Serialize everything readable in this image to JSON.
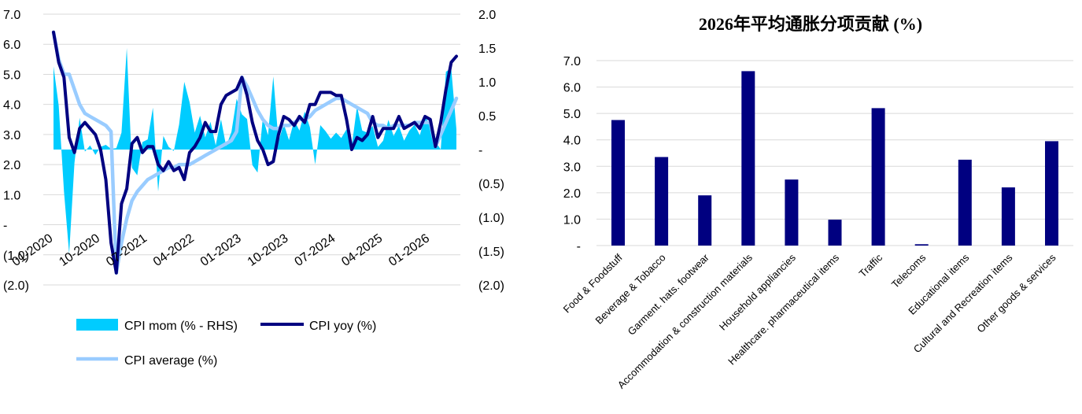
{
  "colors": {
    "mom": "#00CCFF",
    "yoy": "#000080",
    "avg": "#99CCFF",
    "bar": "#000080",
    "grid": "#D9D9D9"
  },
  "chart_data": [
    {
      "type": "line",
      "title": "",
      "left_axis": {
        "ticks": [
          "(2.0)",
          "(1.0)",
          "-",
          "1.0",
          "2.0",
          "3.0",
          "4.0",
          "5.0",
          "6.0",
          "7.0"
        ],
        "ylim": [
          -2,
          7
        ]
      },
      "right_axis": {
        "ticks": [
          "(2.0)",
          "(1.5)",
          "(1.0)",
          "(0.5)",
          "-",
          "0.5",
          "1.0",
          "1.5",
          "2.0"
        ],
        "ylim": [
          -2,
          2
        ]
      },
      "x_labels": [
        "01-2020",
        "10-2020",
        "07-2021",
        "04-2022",
        "01-2023",
        "10-2023",
        "07-2024",
        "04-2025",
        "01-2026"
      ],
      "x_label_months": [
        0,
        9,
        18,
        27,
        36,
        45,
        54,
        63,
        72
      ],
      "grid": true,
      "legend_position": "bottom",
      "series": [
        {
          "name": "CPI mom (% - RHS)",
          "type": "area",
          "axis": "right",
          "values": [
            1.23,
            0.65,
            -0.62,
            -1.54,
            -0.2,
            0.47,
            -0.03,
            0.06,
            -0.08,
            0.04,
            0.07,
            0.01,
            0.02,
            0.25,
            1.5,
            -0.27,
            -0.38,
            0.11,
            0.15,
            0.62,
            -0.62,
            0.2,
            0.04,
            -0.02,
            0.37,
            1.0,
            0.7,
            0.25,
            0.5,
            0.18,
            0.41,
            0.06,
            0.45,
            0.05,
            0.26,
            0.75,
            0.52,
            0.45,
            -0.23,
            -0.34,
            0.47,
            0.21,
            1.08,
            0.12,
            0.38,
            0.14,
            0.43,
            0.28,
            0.56,
            0.33,
            -0.22,
            0.36,
            0.27,
            0.16,
            0.25,
            0.17,
            0.3,
            0.05,
            0.64,
            0.28,
            0.25,
            0.35,
            0.04,
            0.13,
            0.44,
            0.2,
            0.35,
            0.13,
            0.28,
            0.37,
            0.21,
            0.49,
            0.35,
            0.12,
            0.0,
            1.15,
            1.2,
            0.3
          ]
        },
        {
          "name": "CPI yoy (%)",
          "type": "line",
          "axis": "left",
          "values": [
            6.4,
            5.4,
            4.9,
            2.9,
            2.4,
            3.2,
            3.4,
            3.2,
            3.0,
            2.5,
            1.5,
            -0.6,
            -1.6,
            0.7,
            1.2,
            2.7,
            2.9,
            2.4,
            2.6,
            2.6,
            2.0,
            1.8,
            2.1,
            1.8,
            1.9,
            1.5,
            2.4,
            2.6,
            2.9,
            3.4,
            3.1,
            3.1,
            4.0,
            4.3,
            4.4,
            4.5,
            4.9,
            4.3,
            3.4,
            2.8,
            2.5,
            2.0,
            2.1,
            3.0,
            3.6,
            3.5,
            3.3,
            3.6,
            3.4,
            4.0,
            4.0,
            4.4,
            4.4,
            4.4,
            4.3,
            4.3,
            3.5,
            2.5,
            2.9,
            2.8,
            3.0,
            3.6,
            2.9,
            3.2,
            3.2,
            3.2,
            3.6,
            3.2,
            3.3,
            3.4,
            3.2,
            3.6,
            3.5,
            2.6,
            3.4,
            4.5,
            5.4,
            5.6
          ]
        },
        {
          "name": "CPI average (%)",
          "type": "line",
          "axis": "left",
          "values": [
            6.4,
            5.5,
            5.0,
            5.0,
            4.5,
            4.0,
            3.7,
            3.6,
            3.5,
            3.4,
            3.3,
            3.1,
            -1.6,
            -0.6,
            0.2,
            0.8,
            1.1,
            1.3,
            1.5,
            1.6,
            1.7,
            1.8,
            1.9,
            1.9,
            2.0,
            2.0,
            2.0,
            2.1,
            2.2,
            2.3,
            2.4,
            2.5,
            2.6,
            2.7,
            2.8,
            3.1,
            4.9,
            4.6,
            4.2,
            3.8,
            3.5,
            3.3,
            3.2,
            3.2,
            3.3,
            3.3,
            3.4,
            3.5,
            3.5,
            3.6,
            3.8,
            3.9,
            4.0,
            4.1,
            4.2,
            4.2,
            4.1,
            4.0,
            3.9,
            3.8,
            3.7,
            3.4,
            3.3,
            3.3,
            3.2,
            3.3,
            3.3,
            3.3,
            3.3,
            3.4,
            3.4,
            3.4,
            3.4,
            2.6,
            3.0,
            3.4,
            3.8,
            4.2
          ]
        }
      ]
    },
    {
      "type": "bar",
      "title": "2026年平均通胀分项贡献 (%)",
      "categories": [
        "Food & Foodstuff",
        "Beverage & Tobacco",
        "Garment. hats. footwear",
        "Accommodation & construction materials",
        "Household appliancies",
        "Healthcare. pharmaceutical items",
        "Traffic",
        "Telecoms",
        "Educational items",
        "Cultural and Recreation items",
        "Other goods & services"
      ],
      "values": [
        4.75,
        3.35,
        1.9,
        6.6,
        2.5,
        0.98,
        5.2,
        0.05,
        3.25,
        2.2,
        3.95
      ],
      "yticks": [
        "-",
        "1.0",
        "2.0",
        "3.0",
        "4.0",
        "5.0",
        "6.0",
        "7.0"
      ],
      "ylim": [
        0,
        7
      ],
      "xlabel": "",
      "ylabel": "",
      "grid": true
    }
  ]
}
